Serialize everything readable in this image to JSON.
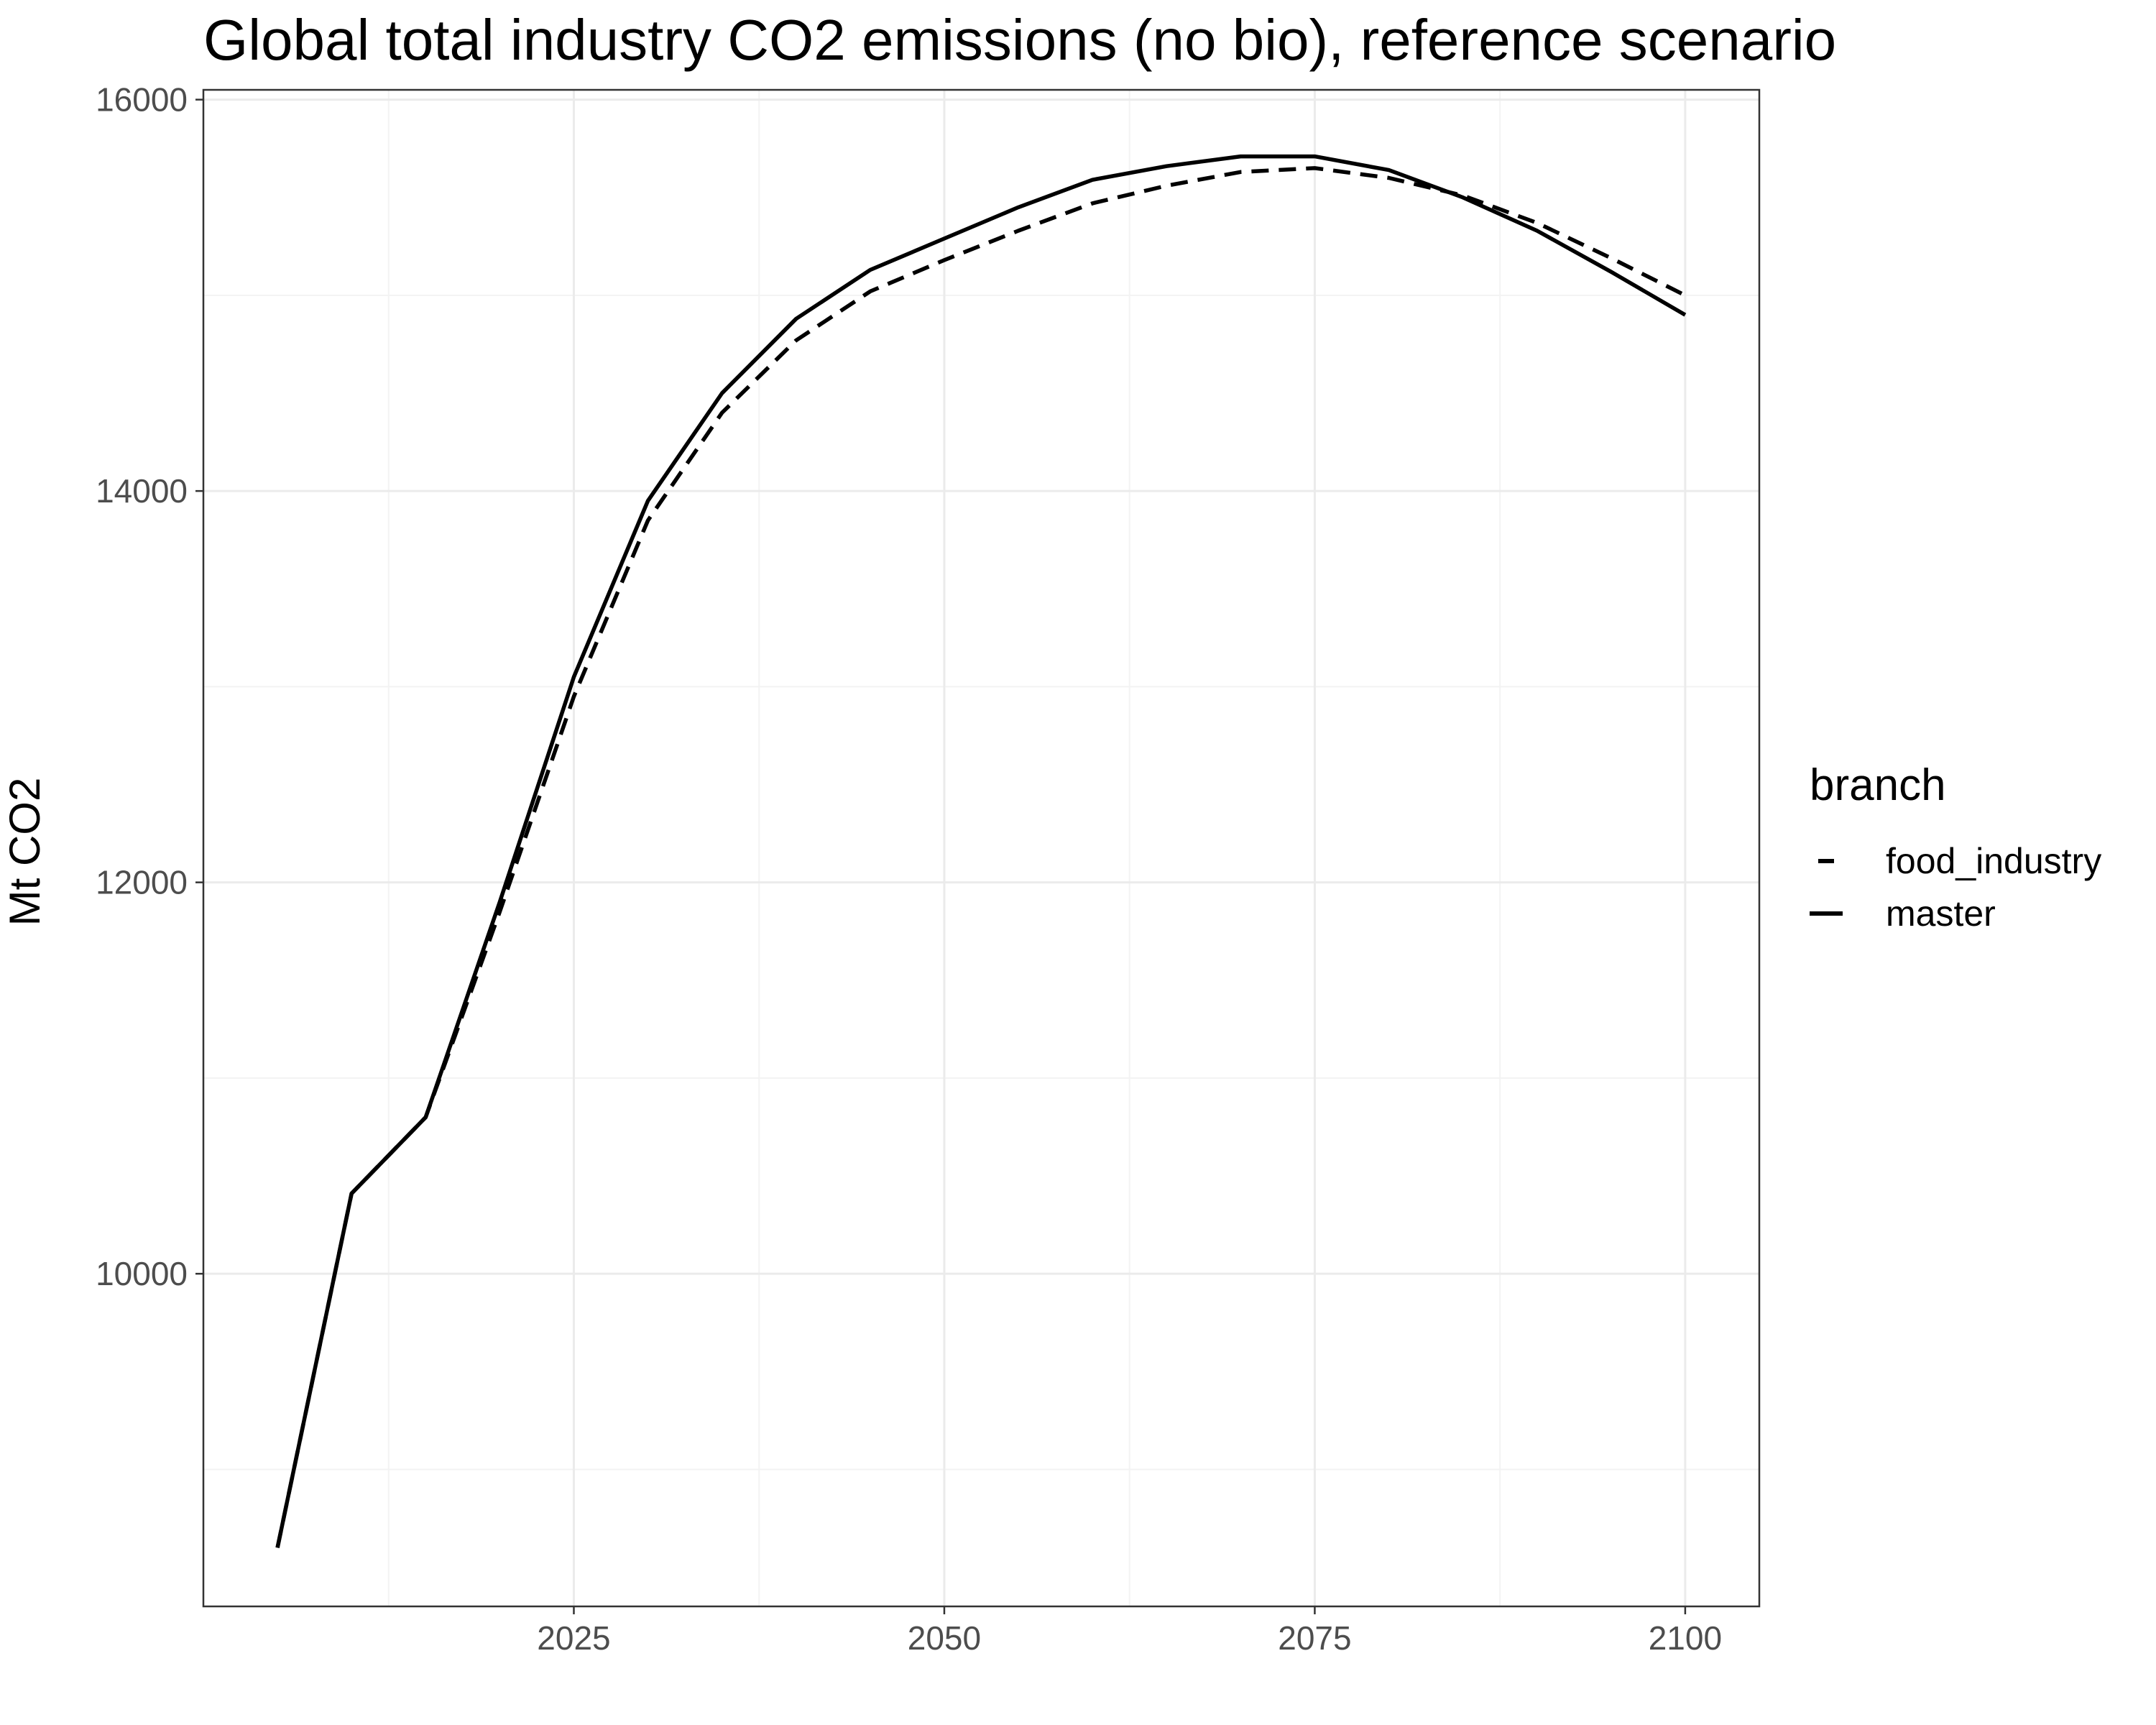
{
  "chart_data": {
    "type": "line",
    "title": "Global total industry CO2 emissions (no bio), reference scenario",
    "xlabel": "",
    "ylabel": "Mt CO2",
    "xlim": [
      2000,
      2105
    ],
    "ylim": [
      8300,
      16050
    ],
    "x_ticks": [
      2025,
      2050,
      2075,
      2100
    ],
    "x_minor_ticks": [
      2012.5,
      2037.5,
      2062.5,
      2087.5
    ],
    "y_ticks": [
      10000,
      12000,
      14000,
      16000
    ],
    "y_minor_ticks": [
      9000,
      11000,
      13000,
      15000
    ],
    "grid": true,
    "legend": {
      "title": "branch",
      "position": "right"
    },
    "series": [
      {
        "name": "food_industry",
        "line_style": "dashed",
        "x": [
          2005,
          2010,
          2015,
          2020,
          2025,
          2030,
          2035,
          2040,
          2045,
          2050,
          2055,
          2060,
          2065,
          2070,
          2075,
          2080,
          2085,
          2090,
          2095,
          2100
        ],
        "y": [
          8600,
          10410,
          10800,
          11850,
          12950,
          13850,
          14400,
          14770,
          15020,
          15180,
          15330,
          15470,
          15560,
          15630,
          15650,
          15600,
          15510,
          15370,
          15190,
          15000
        ]
      },
      {
        "name": "master",
        "line_style": "solid",
        "x": [
          2005,
          2010,
          2015,
          2020,
          2025,
          2030,
          2035,
          2040,
          2045,
          2050,
          2055,
          2060,
          2065,
          2070,
          2075,
          2080,
          2085,
          2090,
          2095,
          2100
        ],
        "y": [
          8600,
          10410,
          10800,
          11900,
          13050,
          13950,
          14500,
          14880,
          15130,
          15290,
          15450,
          15590,
          15660,
          15710,
          15710,
          15640,
          15500,
          15330,
          15120,
          14900
        ]
      }
    ]
  }
}
